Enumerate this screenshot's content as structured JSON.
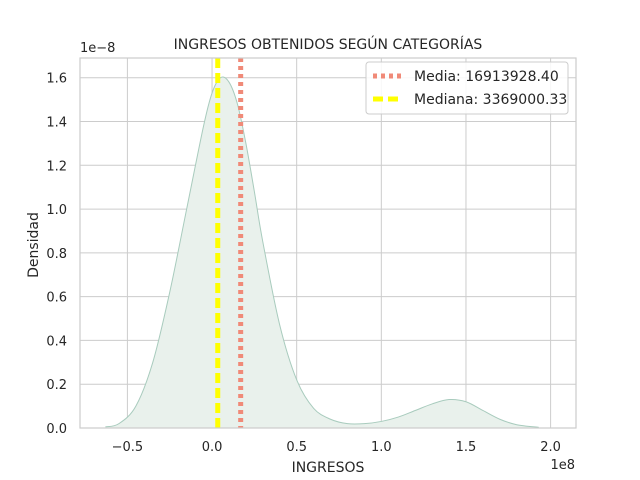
{
  "chart_data": {
    "type": "area",
    "title": "INGRESOS OBTENIDOS SEGÚN CATEGORÍAS",
    "xlabel": "INGRESOS",
    "ylabel": "Densidad",
    "x_multiplier_label": "1e8",
    "y_multiplier_label": "1e−8",
    "x_scale": 100000000.0,
    "y_scale": 1e-08,
    "xlim": [
      -0.78,
      2.15
    ],
    "ylim": [
      0,
      1.69
    ],
    "x_ticks": [
      -0.5,
      0.0,
      0.5,
      1.0,
      1.5,
      2.0
    ],
    "x_tick_labels": [
      "−0.5",
      "0.0",
      "0.5",
      "1.0",
      "1.5",
      "2.0"
    ],
    "y_ticks": [
      0.0,
      0.2,
      0.4,
      0.6,
      0.8,
      1.0,
      1.2,
      1.4,
      1.6
    ],
    "y_tick_labels": [
      "0.0",
      "0.2",
      "0.4",
      "0.6",
      "0.8",
      "1.0",
      "1.2",
      "1.4",
      "1.6"
    ],
    "grid": true,
    "legend_position": "top-right",
    "series": [
      {
        "color": "#a8cbbd",
        "fill": "#e9f1ec",
        "x": [
          -0.63,
          -0.55,
          -0.45,
          -0.35,
          -0.25,
          -0.15,
          -0.05,
          0.0,
          0.05,
          0.1,
          0.15,
          0.2,
          0.25,
          0.3,
          0.4,
          0.5,
          0.6,
          0.7,
          0.8,
          0.9,
          1.0,
          1.1,
          1.2,
          1.3,
          1.4,
          1.5,
          1.6,
          1.7,
          1.8,
          1.93
        ],
        "y": [
          0.005,
          0.02,
          0.1,
          0.3,
          0.62,
          1.0,
          1.38,
          1.53,
          1.6,
          1.58,
          1.48,
          1.3,
          1.08,
          0.85,
          0.47,
          0.22,
          0.09,
          0.04,
          0.02,
          0.02,
          0.03,
          0.05,
          0.08,
          0.11,
          0.13,
          0.12,
          0.08,
          0.04,
          0.015,
          0.003
        ]
      }
    ],
    "lines": [
      {
        "label": "Media: 16913928.40",
        "x": 0.169139284,
        "color": "#f08a78",
        "style": "dotted"
      },
      {
        "label": "Mediana: 3369000.33",
        "x": 0.0336900033,
        "color": "#ffff00",
        "style": "dashed"
      }
    ]
  }
}
